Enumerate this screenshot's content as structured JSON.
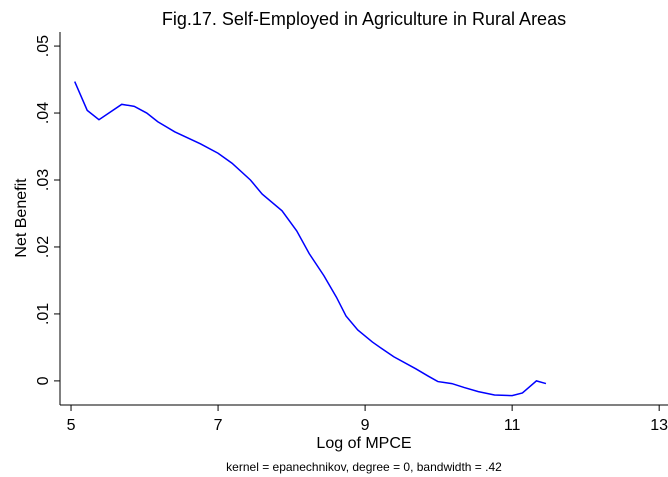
{
  "chart_data": {
    "type": "line",
    "title": "Fig.17. Self-Employed in Agriculture in Rural Areas",
    "x_label": "Log of MPCE",
    "y_label": "Net Benefit",
    "note": "kernel = epanechnikov, degree = 0, bandwidth = .42",
    "xlim": [
      4.85,
      13.12
    ],
    "ylim": [
      -0.0036,
      0.0521
    ],
    "xticks": [
      5,
      7,
      9,
      11,
      13
    ],
    "yticks": [
      0,
      {
        "value": 0.01,
        "label": ".01"
      },
      {
        "value": 0.02,
        "label": ".02"
      },
      {
        "value": 0.03,
        "label": ".03"
      },
      {
        "value": 0.04,
        "label": ".04"
      },
      {
        "value": 0.05,
        "label": ".05"
      }
    ],
    "series": [
      {
        "color": "#0000ff",
        "x": [
          5.05,
          5.22,
          5.38,
          5.69,
          5.86,
          6.03,
          6.18,
          6.41,
          6.76,
          7.0,
          7.19,
          7.44,
          7.6,
          7.87,
          8.07,
          8.24,
          8.44,
          8.61,
          8.74,
          8.9,
          9.1,
          9.23,
          9.39,
          9.69,
          9.86,
          9.99,
          10.18,
          10.35,
          10.54,
          10.76,
          11.0,
          11.14,
          11.33,
          11.46
        ],
        "values": [
          0.0447,
          0.0404,
          0.039,
          0.0413,
          0.041,
          0.04,
          0.0387,
          0.0372,
          0.0354,
          0.034,
          0.0325,
          0.03,
          0.0279,
          0.0254,
          0.0224,
          0.019,
          0.0157,
          0.0125,
          0.0097,
          0.0076,
          0.0058,
          0.0048,
          0.0036,
          0.0018,
          0.0007,
          -0.0001,
          -0.0004,
          -0.001,
          -0.0016,
          -0.0021,
          -0.0022,
          -0.0018,
          0.0,
          -0.0004
        ]
      }
    ]
  }
}
